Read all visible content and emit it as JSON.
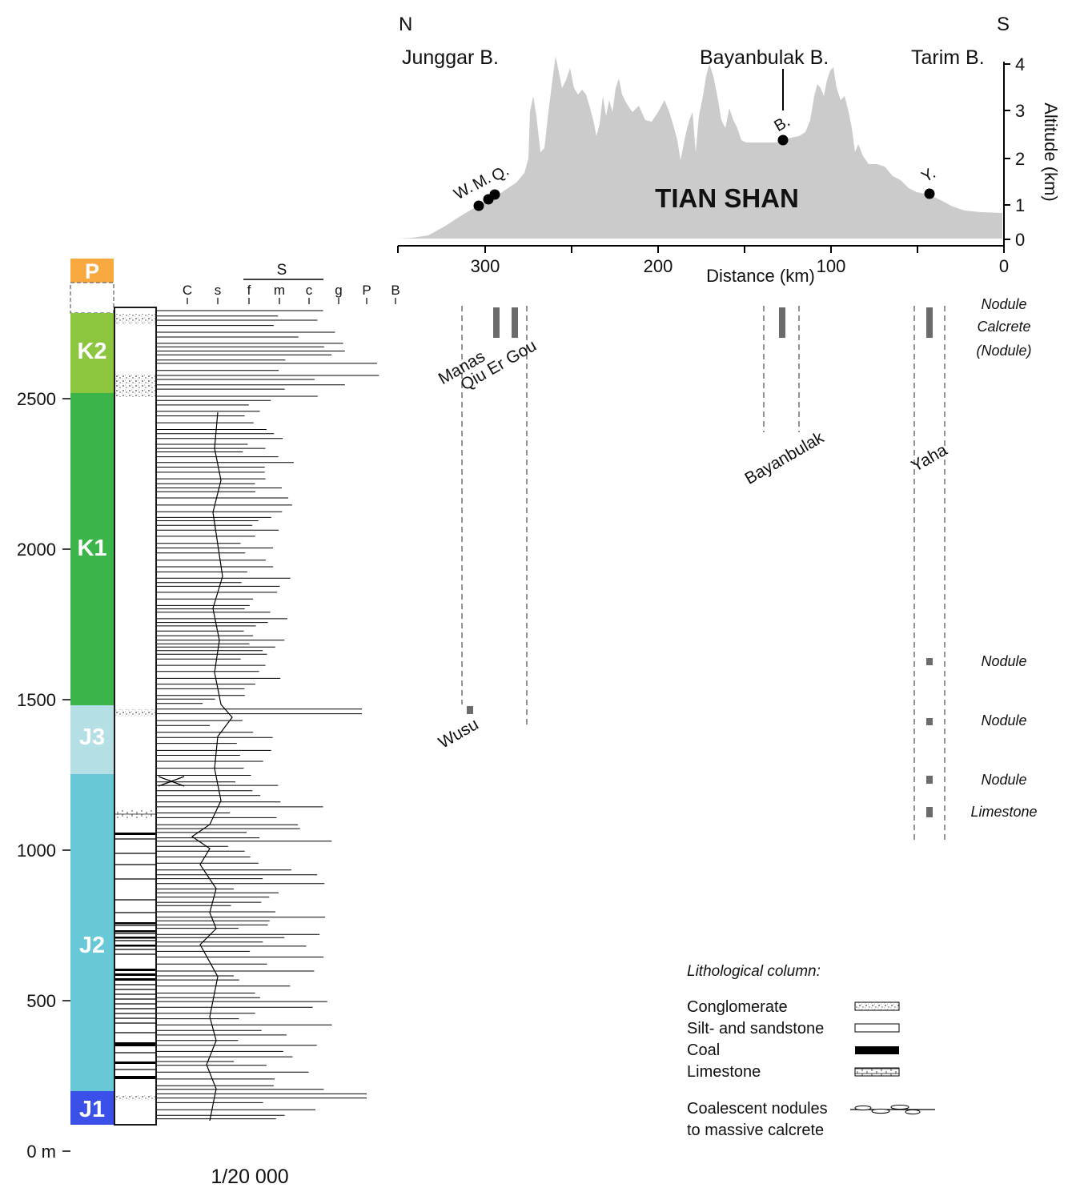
{
  "profile": {
    "north_label": "N",
    "south_label": "S",
    "basins": {
      "junggar": "Junggar B.",
      "bayanbulak": "Bayanbulak B.",
      "tarim": "Tarim B."
    },
    "range_label": "TIAN SHAN",
    "x_axis": {
      "label": "Distance (km)",
      "ticks": [
        "300",
        "200",
        "100",
        "0"
      ]
    },
    "y_axis": {
      "label": "Altitude (km)",
      "ticks": [
        "0",
        "1",
        "2",
        "3",
        "4"
      ]
    },
    "points": {
      "w": "W.",
      "m": "M.",
      "q": "Q.",
      "b": "B.",
      "y": "Y."
    },
    "colors": {
      "relief": "#cbcbcb",
      "point": "#000000"
    }
  },
  "strat_column": {
    "depth_ticks": [
      "2500",
      "2000",
      "1500",
      "1000",
      "500",
      "0 m"
    ],
    "grain_scale": {
      "group_label": "S",
      "labels": [
        "C",
        "s",
        "f",
        "m",
        "c",
        "g",
        "P",
        "B"
      ]
    },
    "units": [
      {
        "name": "P",
        "color": "#f7a940"
      },
      {
        "name": "K2",
        "color": "#8cc63f"
      },
      {
        "name": "K1",
        "color": "#3bb54a"
      },
      {
        "name": "J3",
        "color": "#b3dfe5"
      },
      {
        "name": "J2",
        "color": "#68c8d7"
      },
      {
        "name": "J1",
        "color": "#3a50e8"
      }
    ],
    "scale": "1/20 000"
  },
  "sections": {
    "manas": "Manas",
    "qiu_er_gou": "Qiu Er Gou",
    "wusu": "Wusu",
    "bayanbulak": "Bayanbulak",
    "yaha": "Yaha"
  },
  "calcrete_labels": {
    "top": [
      "Nodule",
      "Calcrete",
      "(Nodule)"
    ],
    "lower": [
      "Nodule",
      "Nodule",
      "Nodule",
      "Limestone"
    ]
  },
  "legend": {
    "title": "Lithological column:",
    "items": [
      "Conglomerate",
      "Silt- and sandstone",
      "Coal",
      "Limestone"
    ],
    "nodules": [
      "Coalescent nodules",
      "to massive calcrete"
    ]
  }
}
